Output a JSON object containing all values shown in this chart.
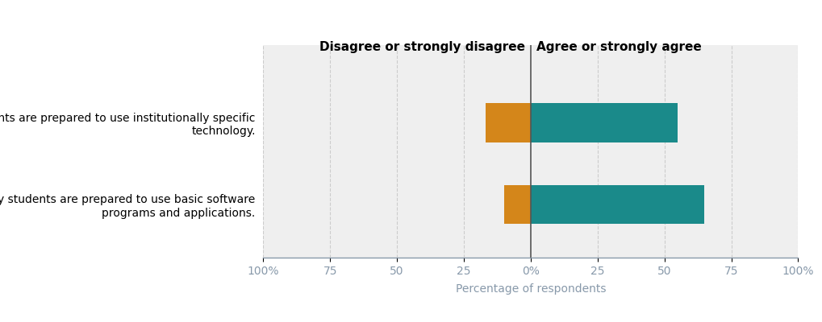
{
  "categories": [
    "My students are prepared to use institutionally specific\ntechnology.",
    "My students are prepared to use basic software\nprograms and applications."
  ],
  "disagree_values": [
    -17,
    -10
  ],
  "agree_values": [
    55,
    65
  ],
  "disagree_color": "#D4861A",
  "agree_color": "#1A8A8A",
  "background_color": "#EFEFEF",
  "axis_color": "#8899AA",
  "header_disagree": "Disagree or strongly disagree",
  "header_agree": "Agree or strongly agree",
  "xlabel": "Percentage of respondents",
  "xlim": [
    -100,
    100
  ],
  "xticks": [
    -100,
    -75,
    -50,
    -25,
    0,
    25,
    50,
    75,
    100
  ],
  "xtick_labels": [
    "100%",
    "75",
    "50",
    "25",
    "0%",
    "25",
    "50",
    "75",
    "100%"
  ],
  "grid_color": "#CCCCCC",
  "header_fontsize": 11,
  "label_fontsize": 10,
  "tick_fontsize": 10,
  "bar_height": 0.48
}
